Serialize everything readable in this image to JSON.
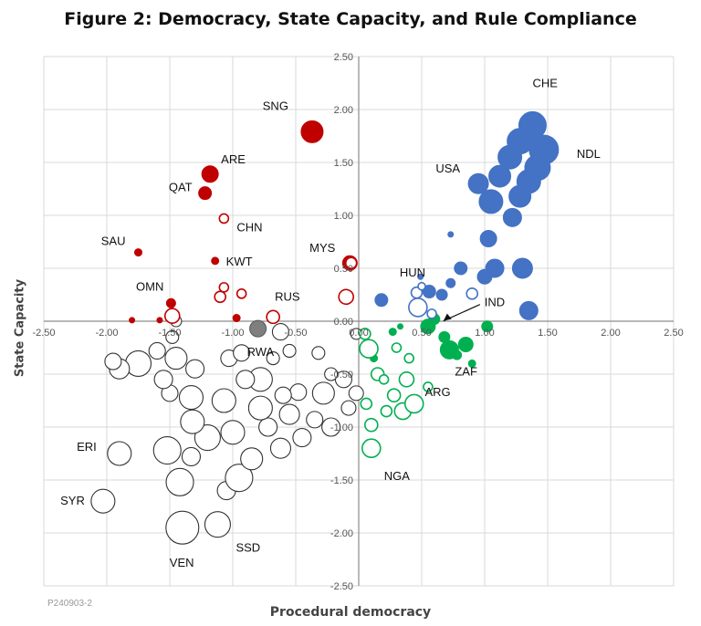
{
  "chart_data": {
    "type": "scatter",
    "title": "Figure 2: Democracy, State Capacity, and Rule Compliance",
    "xlabel": "Procedural democracy",
    "ylabel": "State Capacity",
    "xlim": [
      -2.5,
      2.5
    ],
    "ylim": [
      -2.5,
      2.5
    ],
    "xticks": [
      "-2.50",
      "-2.00",
      "-1.50",
      "-1.00",
      "-0.50",
      "0.00",
      "0.50",
      "1.00",
      "1.50",
      "2.00",
      "2.50"
    ],
    "yticks": [
      "2.50",
      "2.00",
      "1.50",
      "1.00",
      "0.50",
      "0.00",
      "-0.50",
      "-1.00",
      "-1.50",
      "-2.00",
      "-2.50"
    ],
    "grid": true,
    "footnote": "P240903-2",
    "colors": {
      "red": "#c00000",
      "blue": "#4472c4",
      "green": "#00b050",
      "gray": "#7f7f7f",
      "white": "#ffffff",
      "outline": "#333333"
    },
    "series": [
      {
        "color": "red",
        "points": [
          {
            "x": -0.37,
            "y": 1.79,
            "r": 12,
            "filled": true,
            "label": "SNG"
          },
          {
            "x": -1.18,
            "y": 1.39,
            "r": 9,
            "filled": true,
            "label": "ARE"
          },
          {
            "x": -1.22,
            "y": 1.21,
            "r": 7,
            "filled": true,
            "label": "QAT"
          },
          {
            "x": -1.75,
            "y": 0.65,
            "r": 4,
            "filled": true,
            "label": "SAU"
          },
          {
            "x": -1.14,
            "y": 0.57,
            "r": 4,
            "filled": true,
            "label": "KWT"
          },
          {
            "x": -1.49,
            "y": 0.17,
            "r": 5,
            "filled": true,
            "label": "OMN"
          },
          {
            "x": -0.07,
            "y": 0.55,
            "r": 8,
            "filled": true,
            "label": "MYS"
          },
          {
            "x": -1.8,
            "y": 0.01,
            "r": 3,
            "filled": true
          },
          {
            "x": -1.58,
            "y": 0.01,
            "r": 3,
            "filled": true
          },
          {
            "x": -0.97,
            "y": 0.03,
            "r": 4,
            "filled": true
          },
          {
            "x": -1.07,
            "y": 0.97,
            "r": 5,
            "filled": false,
            "label": "CHN"
          },
          {
            "x": -1.1,
            "y": 0.23,
            "r": 6,
            "filled": false
          },
          {
            "x": -1.07,
            "y": 0.32,
            "r": 5,
            "filled": false
          },
          {
            "x": -0.93,
            "y": 0.26,
            "r": 5,
            "filled": false
          },
          {
            "x": -0.68,
            "y": 0.04,
            "r": 7,
            "filled": false,
            "label": "RUS"
          },
          {
            "x": -1.48,
            "y": 0.05,
            "r": 8,
            "filled": false
          },
          {
            "x": -0.1,
            "y": 0.23,
            "r": 8,
            "filled": false
          },
          {
            "x": -0.06,
            "y": 0.55,
            "r": 6,
            "filled": false
          }
        ]
      },
      {
        "color": "blue",
        "points": [
          {
            "x": 1.38,
            "y": 1.85,
            "r": 15,
            "filled": true,
            "label": "CHE"
          },
          {
            "x": 1.47,
            "y": 1.62,
            "r": 16,
            "filled": true,
            "label": "NDL"
          },
          {
            "x": 1.28,
            "y": 1.7,
            "r": 14,
            "filled": true
          },
          {
            "x": 1.2,
            "y": 1.55,
            "r": 13,
            "filled": true
          },
          {
            "x": 1.42,
            "y": 1.45,
            "r": 14,
            "filled": true
          },
          {
            "x": 1.35,
            "y": 1.32,
            "r": 13,
            "filled": true
          },
          {
            "x": 0.95,
            "y": 1.3,
            "r": 11,
            "filled": true,
            "label": "USA"
          },
          {
            "x": 1.12,
            "y": 1.37,
            "r": 12,
            "filled": true
          },
          {
            "x": 1.28,
            "y": 1.18,
            "r": 12,
            "filled": true
          },
          {
            "x": 1.05,
            "y": 1.13,
            "r": 13,
            "filled": true
          },
          {
            "x": 1.22,
            "y": 0.98,
            "r": 10,
            "filled": true
          },
          {
            "x": 1.03,
            "y": 0.78,
            "r": 9,
            "filled": true
          },
          {
            "x": 1.08,
            "y": 0.5,
            "r": 10,
            "filled": true
          },
          {
            "x": 1.0,
            "y": 0.42,
            "r": 8,
            "filled": true
          },
          {
            "x": 1.3,
            "y": 0.5,
            "r": 11,
            "filled": true
          },
          {
            "x": 1.35,
            "y": 0.1,
            "r": 10,
            "filled": true
          },
          {
            "x": 0.81,
            "y": 0.5,
            "r": 7,
            "filled": true
          },
          {
            "x": 0.73,
            "y": 0.36,
            "r": 5,
            "filled": true
          },
          {
            "x": 0.56,
            "y": 0.28,
            "r": 7,
            "filled": true
          },
          {
            "x": 0.66,
            "y": 0.25,
            "r": 6,
            "filled": true
          },
          {
            "x": 0.49,
            "y": 0.42,
            "r": 3,
            "filled": true
          },
          {
            "x": 0.73,
            "y": 0.82,
            "r": 3,
            "filled": true
          },
          {
            "x": 0.18,
            "y": 0.2,
            "r": 7,
            "filled": true,
            "label": "HUN"
          },
          {
            "x": 0.46,
            "y": 0.27,
            "r": 6,
            "filled": false
          },
          {
            "x": 0.47,
            "y": 0.13,
            "r": 10,
            "filled": false
          },
          {
            "x": 0.9,
            "y": 0.26,
            "r": 6,
            "filled": false
          },
          {
            "x": 0.58,
            "y": 0.07,
            "r": 5,
            "filled": false
          },
          {
            "x": 0.5,
            "y": 0.33,
            "r": 4,
            "filled": false
          }
        ]
      },
      {
        "color": "green",
        "points": [
          {
            "x": 0.72,
            "y": -0.27,
            "r": 10,
            "filled": true,
            "label": "ZAF"
          },
          {
            "x": 0.85,
            "y": -0.22,
            "r": 8,
            "filled": true
          },
          {
            "x": 0.55,
            "y": -0.05,
            "r": 8,
            "filled": true
          },
          {
            "x": 0.6,
            "y": 0.02,
            "r": 6,
            "filled": true,
            "label": "IND"
          },
          {
            "x": 0.68,
            "y": -0.15,
            "r": 6,
            "filled": true
          },
          {
            "x": 1.02,
            "y": -0.05,
            "r": 6,
            "filled": true
          },
          {
            "x": 0.9,
            "y": -0.4,
            "r": 4,
            "filled": true
          },
          {
            "x": 0.27,
            "y": -0.1,
            "r": 4,
            "filled": true
          },
          {
            "x": 0.33,
            "y": -0.05,
            "r": 3,
            "filled": true
          },
          {
            "x": 0.12,
            "y": -0.35,
            "r": 4,
            "filled": true
          },
          {
            "x": 0.78,
            "y": -0.32,
            "r": 5,
            "filled": true
          },
          {
            "x": 0.08,
            "y": -0.26,
            "r": 10,
            "filled": false
          },
          {
            "x": 0.38,
            "y": -0.55,
            "r": 8,
            "filled": false,
            "label": "ARG"
          },
          {
            "x": 0.35,
            "y": -0.85,
            "r": 9,
            "filled": false
          },
          {
            "x": 0.44,
            "y": -0.78,
            "r": 10,
            "filled": false
          },
          {
            "x": 0.28,
            "y": -0.7,
            "r": 7,
            "filled": false
          },
          {
            "x": 0.06,
            "y": -0.78,
            "r": 6,
            "filled": false
          },
          {
            "x": 0.1,
            "y": -0.98,
            "r": 7,
            "filled": false
          },
          {
            "x": 0.1,
            "y": -1.2,
            "r": 10,
            "filled": false,
            "label": "NGA"
          },
          {
            "x": 0.22,
            "y": -0.85,
            "r": 6,
            "filled": false
          },
          {
            "x": 0.15,
            "y": -0.5,
            "r": 7,
            "filled": false
          },
          {
            "x": 0.05,
            "y": -0.12,
            "r": 6,
            "filled": false
          },
          {
            "x": 0.3,
            "y": -0.25,
            "r": 5,
            "filled": false
          },
          {
            "x": 0.55,
            "y": -0.62,
            "r": 5,
            "filled": false
          },
          {
            "x": 0.4,
            "y": -0.35,
            "r": 5,
            "filled": false
          },
          {
            "x": 0.2,
            "y": -0.55,
            "r": 5,
            "filled": false
          }
        ]
      },
      {
        "color": "gray",
        "points": [
          {
            "x": -0.8,
            "y": -0.07,
            "r": 9,
            "filled": true,
            "label": "RWA"
          }
        ]
      },
      {
        "color": "white",
        "points": [
          {
            "x": -2.03,
            "y": -1.7,
            "r": 13,
            "filled": false,
            "label": "SYR"
          },
          {
            "x": -1.9,
            "y": -1.25,
            "r": 13,
            "filled": false,
            "label": "ERI"
          },
          {
            "x": -1.4,
            "y": -1.95,
            "r": 18,
            "filled": false,
            "label": "VEN"
          },
          {
            "x": -1.12,
            "y": -1.92,
            "r": 14,
            "filled": false,
            "label": "SSD"
          },
          {
            "x": -1.42,
            "y": -1.52,
            "r": 15,
            "filled": false
          },
          {
            "x": -1.05,
            "y": -1.6,
            "r": 10,
            "filled": false
          },
          {
            "x": -0.95,
            "y": -1.48,
            "r": 15,
            "filled": false
          },
          {
            "x": -1.52,
            "y": -1.22,
            "r": 15,
            "filled": false
          },
          {
            "x": -1.33,
            "y": -1.28,
            "r": 10,
            "filled": false
          },
          {
            "x": -1.2,
            "y": -1.1,
            "r": 14,
            "filled": false
          },
          {
            "x": -1.32,
            "y": -0.95,
            "r": 13,
            "filled": false
          },
          {
            "x": -1.0,
            "y": -1.05,
            "r": 13,
            "filled": false
          },
          {
            "x": -0.85,
            "y": -1.3,
            "r": 12,
            "filled": false
          },
          {
            "x": -0.62,
            "y": -1.2,
            "r": 11,
            "filled": false
          },
          {
            "x": -0.45,
            "y": -1.1,
            "r": 10,
            "filled": false
          },
          {
            "x": -0.72,
            "y": -1.0,
            "r": 10,
            "filled": false
          },
          {
            "x": -0.78,
            "y": -0.82,
            "r": 13,
            "filled": false
          },
          {
            "x": -0.55,
            "y": -0.88,
            "r": 11,
            "filled": false
          },
          {
            "x": -0.35,
            "y": -0.93,
            "r": 9,
            "filled": false
          },
          {
            "x": -0.22,
            "y": -1.0,
            "r": 10,
            "filled": false
          },
          {
            "x": -0.08,
            "y": -0.82,
            "r": 8,
            "filled": false
          },
          {
            "x": -0.28,
            "y": -0.68,
            "r": 12,
            "filled": false
          },
          {
            "x": -0.12,
            "y": -0.55,
            "r": 9,
            "filled": false
          },
          {
            "x": -0.48,
            "y": -0.67,
            "r": 9,
            "filled": false
          },
          {
            "x": -0.6,
            "y": -0.7,
            "r": 9,
            "filled": false
          },
          {
            "x": -0.78,
            "y": -0.55,
            "r": 13,
            "filled": false
          },
          {
            "x": -0.9,
            "y": -0.55,
            "r": 10,
            "filled": false
          },
          {
            "x": -1.07,
            "y": -0.75,
            "r": 13,
            "filled": false
          },
          {
            "x": -1.33,
            "y": -0.72,
            "r": 13,
            "filled": false
          },
          {
            "x": -1.5,
            "y": -0.68,
            "r": 9,
            "filled": false
          },
          {
            "x": -1.55,
            "y": -0.55,
            "r": 10,
            "filled": false
          },
          {
            "x": -1.75,
            "y": -0.4,
            "r": 14,
            "filled": false
          },
          {
            "x": -1.9,
            "y": -0.45,
            "r": 11,
            "filled": false
          },
          {
            "x": -1.95,
            "y": -0.38,
            "r": 9,
            "filled": false
          },
          {
            "x": -1.45,
            "y": -0.35,
            "r": 12,
            "filled": false
          },
          {
            "x": -1.6,
            "y": -0.28,
            "r": 9,
            "filled": false
          },
          {
            "x": -1.48,
            "y": -0.15,
            "r": 7,
            "filled": false
          },
          {
            "x": -1.3,
            "y": -0.45,
            "r": 10,
            "filled": false
          },
          {
            "x": -1.03,
            "y": -0.35,
            "r": 9,
            "filled": false
          },
          {
            "x": -0.93,
            "y": -0.3,
            "r": 9,
            "filled": false
          },
          {
            "x": -0.68,
            "y": -0.35,
            "r": 7,
            "filled": false
          },
          {
            "x": -0.55,
            "y": -0.28,
            "r": 7,
            "filled": false
          },
          {
            "x": -0.62,
            "y": -0.1,
            "r": 9,
            "filled": false
          },
          {
            "x": -0.32,
            "y": -0.3,
            "r": 7,
            "filled": false
          },
          {
            "x": -0.22,
            "y": -0.5,
            "r": 7,
            "filled": false
          },
          {
            "x": -1.45,
            "y": 0.0,
            "r": 6,
            "filled": false
          },
          {
            "x": -0.02,
            "y": -0.12,
            "r": 6,
            "filled": false
          },
          {
            "x": -0.02,
            "y": -0.68,
            "r": 8,
            "filled": false
          }
        ]
      }
    ]
  }
}
